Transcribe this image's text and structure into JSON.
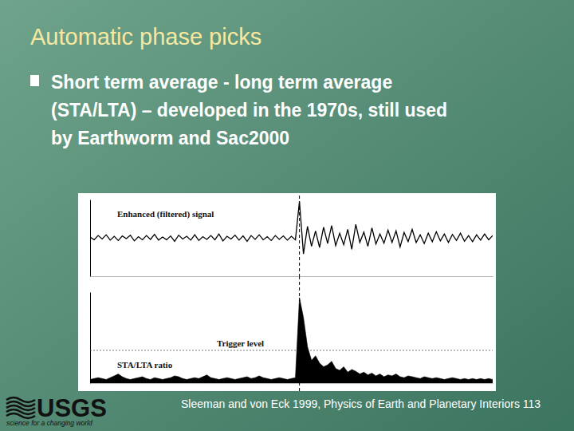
{
  "slide": {
    "title": "Automatic phase picks",
    "bullet_lines": [
      "Short term average - long term average",
      "(STA/LTA) – developed in the 1970s, still used",
      "by Earthworm and Sac2000"
    ],
    "citation": "Sleeman and von Eck 1999, Physics of Earth and Planetary Interiors 113",
    "logo": {
      "name": "USGS",
      "tagline": "science for a changing world"
    }
  },
  "chart_data": [
    {
      "type": "line",
      "title": "Enhanced (filtered) signal",
      "x": [
        0,
        1,
        2,
        3,
        4,
        5,
        6,
        7,
        8,
        9,
        10,
        11,
        12,
        13,
        14,
        15,
        16,
        17,
        18,
        19,
        20,
        21,
        22,
        23,
        24,
        25,
        26,
        27,
        28,
        29,
        30,
        31,
        32,
        33,
        34,
        35,
        36,
        37,
        38,
        39,
        40,
        41,
        42,
        43,
        44,
        45,
        46,
        47,
        48,
        49,
        50,
        51,
        52,
        53,
        54,
        55,
        56,
        57,
        58,
        59,
        60,
        61,
        62,
        63,
        64,
        65,
        66,
        67,
        68,
        69,
        70,
        71,
        72,
        73,
        74,
        75,
        76,
        77,
        78,
        79,
        80,
        81,
        82,
        83,
        84,
        85,
        86,
        87,
        88,
        89,
        90,
        91,
        92,
        93,
        94,
        95,
        96,
        97,
        98,
        99,
        100
      ],
      "values": [
        0.02,
        -0.05,
        0.06,
        -0.03,
        0.08,
        -0.06,
        0.04,
        -0.07,
        0.05,
        -0.02,
        0.07,
        -0.08,
        0.03,
        -0.05,
        0.06,
        -0.04,
        0.09,
        -0.06,
        0.02,
        -0.05,
        0.05,
        -0.09,
        0.07,
        -0.03,
        0.04,
        -0.06,
        0.08,
        -0.07,
        0.03,
        -0.04,
        0.06,
        -0.05,
        0.1,
        -0.08,
        0.04,
        -0.03,
        0.07,
        -0.06,
        0.05,
        -0.09,
        0.06,
        -0.04,
        0.08,
        -0.05,
        0.03,
        -0.07,
        0.06,
        -0.04,
        0.05,
        -0.06,
        0.04,
        -0.05,
        0.95,
        -0.42,
        0.3,
        -0.22,
        0.18,
        -0.25,
        0.28,
        -0.15,
        0.32,
        -0.2,
        0.12,
        -0.18,
        0.22,
        -0.3,
        0.35,
        -0.12,
        0.15,
        -0.22,
        0.26,
        -0.16,
        0.1,
        -0.14,
        0.2,
        -0.12,
        0.18,
        -0.24,
        0.14,
        -0.1,
        0.22,
        -0.12,
        0.08,
        -0.15,
        0.12,
        -0.1,
        0.16,
        -0.08,
        0.1,
        -0.12,
        0.09,
        -0.07,
        0.12,
        -0.09,
        0.06,
        -0.1,
        0.08,
        -0.06,
        0.1,
        -0.05,
        0.06
      ],
      "xlim": [
        0,
        100
      ],
      "ylim": [
        -1,
        1
      ],
      "tick_labels": false,
      "color": "#000000",
      "pick_x": 52
    },
    {
      "type": "area",
      "title": "STA/LTA ratio",
      "x": [
        0,
        1,
        2,
        3,
        4,
        5,
        6,
        7,
        8,
        9,
        10,
        11,
        12,
        13,
        14,
        15,
        16,
        17,
        18,
        19,
        20,
        21,
        22,
        23,
        24,
        25,
        26,
        27,
        28,
        29,
        30,
        31,
        32,
        33,
        34,
        35,
        36,
        37,
        38,
        39,
        40,
        41,
        42,
        43,
        44,
        45,
        46,
        47,
        48,
        49,
        50,
        51,
        52,
        53,
        54,
        55,
        56,
        57,
        58,
        59,
        60,
        61,
        62,
        63,
        64,
        65,
        66,
        67,
        68,
        69,
        70,
        71,
        72,
        73,
        74,
        75,
        76,
        77,
        78,
        79,
        80,
        81,
        82,
        83,
        84,
        85,
        86,
        87,
        88,
        89,
        90,
        91,
        92,
        93,
        94,
        95,
        96,
        97,
        98,
        99,
        100
      ],
      "values": [
        0.04,
        0.05,
        0.06,
        0.05,
        0.04,
        0.06,
        0.08,
        0.1,
        0.07,
        0.05,
        0.04,
        0.05,
        0.06,
        0.07,
        0.05,
        0.04,
        0.06,
        0.05,
        0.04,
        0.05,
        0.06,
        0.08,
        0.07,
        0.05,
        0.04,
        0.05,
        0.06,
        0.05,
        0.07,
        0.09,
        0.06,
        0.05,
        0.04,
        0.05,
        0.06,
        0.05,
        0.04,
        0.05,
        0.06,
        0.07,
        0.05,
        0.06,
        0.08,
        0.06,
        0.05,
        0.04,
        0.05,
        0.06,
        0.05,
        0.04,
        0.05,
        0.06,
        0.94,
        0.72,
        0.4,
        0.25,
        0.3,
        0.22,
        0.18,
        0.2,
        0.24,
        0.16,
        0.14,
        0.18,
        0.12,
        0.15,
        0.13,
        0.1,
        0.12,
        0.09,
        0.11,
        0.08,
        0.1,
        0.07,
        0.09,
        0.08,
        0.1,
        0.07,
        0.06,
        0.08,
        0.07,
        0.06,
        0.05,
        0.07,
        0.06,
        0.05,
        0.06,
        0.05,
        0.04,
        0.05,
        0.06,
        0.05,
        0.04,
        0.05,
        0.04,
        0.05,
        0.04,
        0.05,
        0.04,
        0.05,
        0.04
      ],
      "xlim": [
        0,
        100
      ],
      "ylim": [
        0,
        1
      ],
      "tick_labels": false,
      "color": "#000000",
      "pick_x": 52,
      "annotations": [
        {
          "text": "Trigger level",
          "y": 0.36
        }
      ]
    }
  ]
}
